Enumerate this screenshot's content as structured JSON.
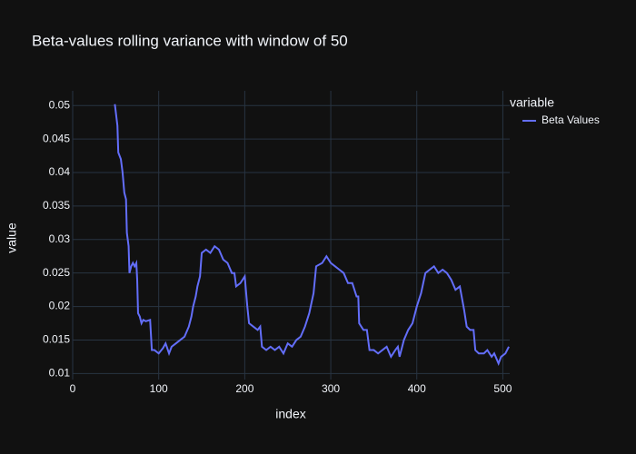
{
  "chart_data": {
    "type": "line",
    "title": "Beta-values rolling variance with window of 50",
    "x_label": "index",
    "y_label": "value",
    "legend_title": "variable",
    "x": [
      49,
      52,
      53,
      56,
      58,
      60,
      62,
      63,
      65,
      66,
      68,
      70,
      72,
      74,
      75,
      76,
      78,
      80,
      82,
      85,
      90,
      92,
      95,
      100,
      105,
      108,
      112,
      115,
      120,
      125,
      130,
      135,
      138,
      140,
      143,
      145,
      148,
      150,
      155,
      160,
      165,
      170,
      175,
      180,
      185,
      188,
      190,
      195,
      200,
      203,
      205,
      210,
      215,
      218,
      220,
      225,
      230,
      235,
      240,
      245,
      250,
      255,
      260,
      265,
      270,
      275,
      280,
      283,
      290,
      295,
      300,
      305,
      310,
      315,
      320,
      325,
      330,
      332,
      333,
      338,
      342,
      345,
      350,
      355,
      360,
      365,
      370,
      375,
      378,
      380,
      385,
      390,
      395,
      400,
      405,
      410,
      415,
      420,
      425,
      430,
      435,
      440,
      445,
      450,
      455,
      458,
      462,
      466,
      468,
      472,
      478,
      482,
      487,
      490,
      495,
      498,
      503,
      507
    ],
    "series": [
      {
        "name": "Beta Values",
        "color": "#636efa",
        "values": [
          0.0502,
          0.047,
          0.043,
          0.042,
          0.04,
          0.037,
          0.036,
          0.031,
          0.029,
          0.025,
          0.026,
          0.0265,
          0.026,
          0.0265,
          0.024,
          0.019,
          0.0185,
          0.0175,
          0.018,
          0.0178,
          0.018,
          0.0135,
          0.0135,
          0.013,
          0.0138,
          0.0145,
          0.013,
          0.014,
          0.0145,
          0.015,
          0.0155,
          0.017,
          0.0185,
          0.02,
          0.0215,
          0.023,
          0.0245,
          0.028,
          0.0285,
          0.028,
          0.029,
          0.0285,
          0.027,
          0.0265,
          0.025,
          0.025,
          0.023,
          0.0235,
          0.0245,
          0.02,
          0.0175,
          0.017,
          0.0165,
          0.017,
          0.014,
          0.0135,
          0.014,
          0.0135,
          0.014,
          0.013,
          0.0145,
          0.014,
          0.015,
          0.0155,
          0.017,
          0.019,
          0.022,
          0.026,
          0.0265,
          0.0275,
          0.0265,
          0.026,
          0.0255,
          0.025,
          0.0235,
          0.0235,
          0.0215,
          0.0215,
          0.0175,
          0.0165,
          0.0165,
          0.0135,
          0.0135,
          0.013,
          0.0135,
          0.014,
          0.0125,
          0.0135,
          0.014,
          0.0125,
          0.015,
          0.0165,
          0.0175,
          0.02,
          0.022,
          0.025,
          0.0255,
          0.026,
          0.025,
          0.0255,
          0.025,
          0.024,
          0.0225,
          0.023,
          0.0195,
          0.017,
          0.0165,
          0.0165,
          0.0135,
          0.013,
          0.013,
          0.0135,
          0.0125,
          0.013,
          0.0115,
          0.0125,
          0.013,
          0.014
        ]
      }
    ],
    "xlim": [
      0,
      508
    ],
    "xticks": [
      0,
      100,
      200,
      300,
      400,
      500
    ],
    "ylim": [
      0.0091,
      0.0522
    ],
    "yticks": [
      0.01,
      0.015,
      0.02,
      0.025,
      0.03,
      0.035,
      0.04,
      0.045,
      0.05
    ],
    "grid": true
  }
}
